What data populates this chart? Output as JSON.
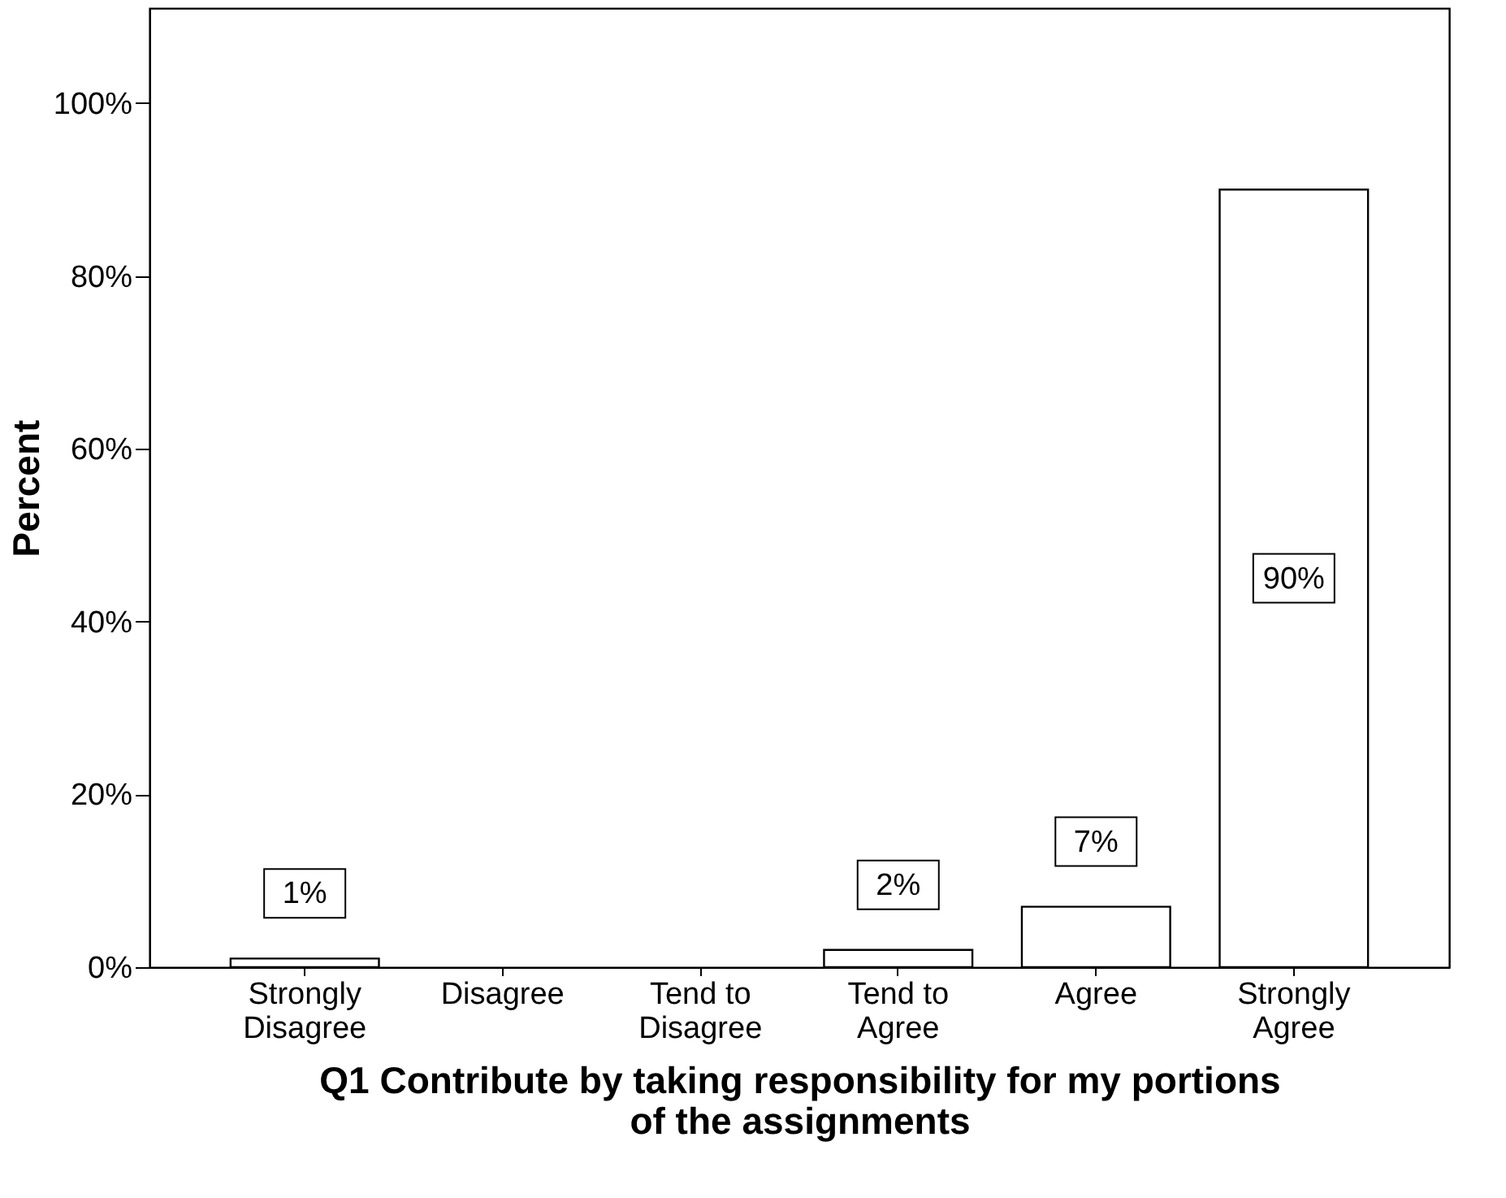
{
  "chart_data": {
    "type": "bar",
    "categories": [
      "Strongly Disagree",
      "Disagree",
      "Tend to Disagree",
      "Tend to Agree",
      "Agree",
      "Strongly Agree"
    ],
    "values": [
      1,
      null,
      null,
      2,
      7,
      90
    ],
    "value_labels": [
      "1%",
      null,
      null,
      "2%",
      "7%",
      "90%"
    ],
    "color": "#ffffff",
    "xlabel": "Q1 Contribute by taking responsibility for my portions of the assignments",
    "ylabel": "Percent",
    "ylim": [
      0,
      111
    ],
    "yticks": [
      {
        "value": 0,
        "label": "0%"
      },
      {
        "value": 20,
        "label": "20%"
      },
      {
        "value": 40,
        "label": "40%"
      },
      {
        "value": 60,
        "label": "60%"
      },
      {
        "value": 80,
        "label": "80%"
      },
      {
        "value": 100,
        "label": "100%"
      }
    ],
    "grid": false
  }
}
